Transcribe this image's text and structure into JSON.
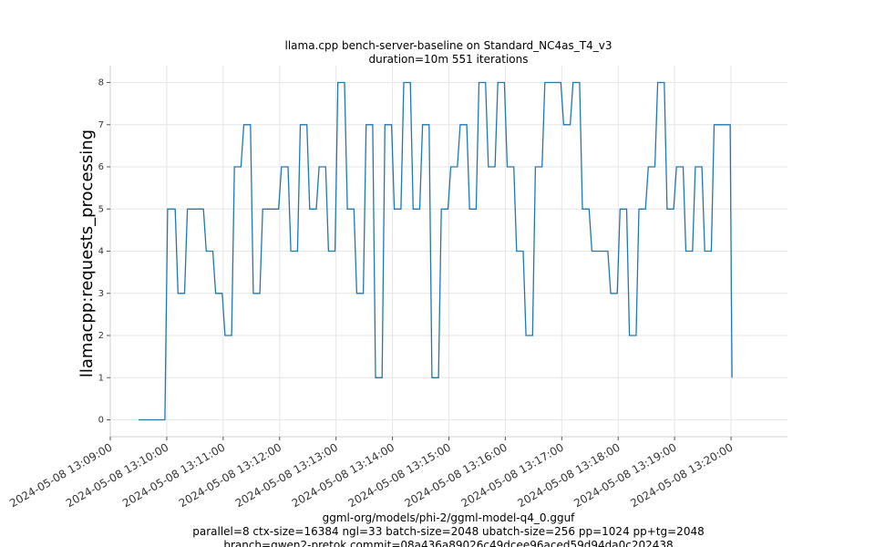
{
  "colors": {
    "series": "#1f77b4"
  },
  "chart_data": {
    "type": "line",
    "title": [
      "llama.cpp bench-server-baseline on Standard_NC4as_T4_v3",
      "duration=10m 551 iterations"
    ],
    "ylabel": "llamacpp:requests_processing",
    "xlabel_lines": [
      "ggml-org/models/phi-2/ggml-model-q4_0.gguf",
      "parallel=8 ctx-size=16384 ngl=33 batch-size=2048 ubatch-size=256 pp=1024 pp+tg=2048",
      "branch=qwen2-pretok commit=08a436a89026c49dcee96aced59d94da0c202438"
    ],
    "x_axis_type": "time",
    "x_tick_labels": [
      "2024-05-08 13:09:00",
      "2024-05-08 13:10:00",
      "2024-05-08 13:11:00",
      "2024-05-08 13:12:00",
      "2024-05-08 13:13:00",
      "2024-05-08 13:14:00",
      "2024-05-08 13:15:00",
      "2024-05-08 13:16:00",
      "2024-05-08 13:17:00",
      "2024-05-08 13:18:00",
      "2024-05-08 13:19:00",
      "2024-05-08 13:20:00"
    ],
    "xlim": [
      "2024-05-08 13:09:00",
      "2024-05-08 13:21:00"
    ],
    "ylim": [
      -0.4,
      8.4
    ],
    "y_ticks": [
      0,
      1,
      2,
      3,
      4,
      5,
      6,
      7,
      8
    ],
    "grid": true,
    "series": [
      {
        "points": [
          [
            "2024-05-08 13:09:30",
            0
          ],
          [
            "2024-05-08 13:09:58",
            0
          ],
          [
            "2024-05-08 13:10:01",
            5
          ],
          [
            "2024-05-08 13:10:09",
            5
          ],
          [
            "2024-05-08 13:10:12",
            3
          ],
          [
            "2024-05-08 13:10:19",
            3
          ],
          [
            "2024-05-08 13:10:22",
            5
          ],
          [
            "2024-05-08 13:10:39",
            5
          ],
          [
            "2024-05-08 13:10:42",
            4
          ],
          [
            "2024-05-08 13:10:49",
            4
          ],
          [
            "2024-05-08 13:10:52",
            3
          ],
          [
            "2024-05-08 13:10:59",
            3
          ],
          [
            "2024-05-08 13:11:02",
            2
          ],
          [
            "2024-05-08 13:11:09",
            2
          ],
          [
            "2024-05-08 13:11:12",
            6
          ],
          [
            "2024-05-08 13:11:19",
            6
          ],
          [
            "2024-05-08 13:11:22",
            7
          ],
          [
            "2024-05-08 13:11:29",
            7
          ],
          [
            "2024-05-08 13:11:32",
            3
          ],
          [
            "2024-05-08 13:11:39",
            3
          ],
          [
            "2024-05-08 13:11:42",
            5
          ],
          [
            "2024-05-08 13:11:59",
            5
          ],
          [
            "2024-05-08 13:12:02",
            6
          ],
          [
            "2024-05-08 13:12:09",
            6
          ],
          [
            "2024-05-08 13:12:12",
            4
          ],
          [
            "2024-05-08 13:12:19",
            4
          ],
          [
            "2024-05-08 13:12:22",
            7
          ],
          [
            "2024-05-08 13:12:29",
            7
          ],
          [
            "2024-05-08 13:12:32",
            5
          ],
          [
            "2024-05-08 13:12:39",
            5
          ],
          [
            "2024-05-08 13:12:42",
            6
          ],
          [
            "2024-05-08 13:12:49",
            6
          ],
          [
            "2024-05-08 13:12:52",
            4
          ],
          [
            "2024-05-08 13:12:59",
            4
          ],
          [
            "2024-05-08 13:13:02",
            8
          ],
          [
            "2024-05-08 13:13:09",
            8
          ],
          [
            "2024-05-08 13:13:12",
            5
          ],
          [
            "2024-05-08 13:13:19",
            5
          ],
          [
            "2024-05-08 13:13:22",
            3
          ],
          [
            "2024-05-08 13:13:29",
            3
          ],
          [
            "2024-05-08 13:13:32",
            7
          ],
          [
            "2024-05-08 13:13:39",
            7
          ],
          [
            "2024-05-08 13:13:42",
            1
          ],
          [
            "2024-05-08 13:13:49",
            1
          ],
          [
            "2024-05-08 13:13:52",
            7
          ],
          [
            "2024-05-08 13:13:59",
            7
          ],
          [
            "2024-05-08 13:14:02",
            5
          ],
          [
            "2024-05-08 13:14:09",
            5
          ],
          [
            "2024-05-08 13:14:12",
            8
          ],
          [
            "2024-05-08 13:14:19",
            8
          ],
          [
            "2024-05-08 13:14:22",
            5
          ],
          [
            "2024-05-08 13:14:29",
            5
          ],
          [
            "2024-05-08 13:14:32",
            7
          ],
          [
            "2024-05-08 13:14:39",
            7
          ],
          [
            "2024-05-08 13:14:42",
            1
          ],
          [
            "2024-05-08 13:14:49",
            1
          ],
          [
            "2024-05-08 13:14:52",
            5
          ],
          [
            "2024-05-08 13:14:59",
            5
          ],
          [
            "2024-05-08 13:15:02",
            6
          ],
          [
            "2024-05-08 13:15:09",
            6
          ],
          [
            "2024-05-08 13:15:12",
            7
          ],
          [
            "2024-05-08 13:15:19",
            7
          ],
          [
            "2024-05-08 13:15:22",
            5
          ],
          [
            "2024-05-08 13:15:29",
            5
          ],
          [
            "2024-05-08 13:15:32",
            8
          ],
          [
            "2024-05-08 13:15:39",
            8
          ],
          [
            "2024-05-08 13:15:42",
            6
          ],
          [
            "2024-05-08 13:15:49",
            6
          ],
          [
            "2024-05-08 13:15:52",
            8
          ],
          [
            "2024-05-08 13:15:59",
            8
          ],
          [
            "2024-05-08 13:16:02",
            6
          ],
          [
            "2024-05-08 13:16:09",
            6
          ],
          [
            "2024-05-08 13:16:12",
            4
          ],
          [
            "2024-05-08 13:16:19",
            4
          ],
          [
            "2024-05-08 13:16:22",
            2
          ],
          [
            "2024-05-08 13:16:29",
            2
          ],
          [
            "2024-05-08 13:16:32",
            6
          ],
          [
            "2024-05-08 13:16:39",
            6
          ],
          [
            "2024-05-08 13:16:42",
            8
          ],
          [
            "2024-05-08 13:16:59",
            8
          ],
          [
            "2024-05-08 13:17:02",
            7
          ],
          [
            "2024-05-08 13:17:09",
            7
          ],
          [
            "2024-05-08 13:17:12",
            8
          ],
          [
            "2024-05-08 13:17:19",
            8
          ],
          [
            "2024-05-08 13:17:22",
            5
          ],
          [
            "2024-05-08 13:17:29",
            5
          ],
          [
            "2024-05-08 13:17:32",
            4
          ],
          [
            "2024-05-08 13:17:49",
            4
          ],
          [
            "2024-05-08 13:17:52",
            3
          ],
          [
            "2024-05-08 13:17:59",
            3
          ],
          [
            "2024-05-08 13:18:02",
            5
          ],
          [
            "2024-05-08 13:18:09",
            5
          ],
          [
            "2024-05-08 13:18:12",
            2
          ],
          [
            "2024-05-08 13:18:19",
            2
          ],
          [
            "2024-05-08 13:18:22",
            5
          ],
          [
            "2024-05-08 13:18:29",
            5
          ],
          [
            "2024-05-08 13:18:32",
            6
          ],
          [
            "2024-05-08 13:18:39",
            6
          ],
          [
            "2024-05-08 13:18:42",
            8
          ],
          [
            "2024-05-08 13:18:49",
            8
          ],
          [
            "2024-05-08 13:18:52",
            5
          ],
          [
            "2024-05-08 13:18:59",
            5
          ],
          [
            "2024-05-08 13:19:02",
            6
          ],
          [
            "2024-05-08 13:19:09",
            6
          ],
          [
            "2024-05-08 13:19:12",
            4
          ],
          [
            "2024-05-08 13:19:19",
            4
          ],
          [
            "2024-05-08 13:19:22",
            6
          ],
          [
            "2024-05-08 13:19:29",
            6
          ],
          [
            "2024-05-08 13:19:32",
            4
          ],
          [
            "2024-05-08 13:19:39",
            4
          ],
          [
            "2024-05-08 13:19:42",
            7
          ],
          [
            "2024-05-08 13:19:59",
            7
          ],
          [
            "2024-05-08 13:20:01",
            1
          ]
        ]
      }
    ]
  }
}
